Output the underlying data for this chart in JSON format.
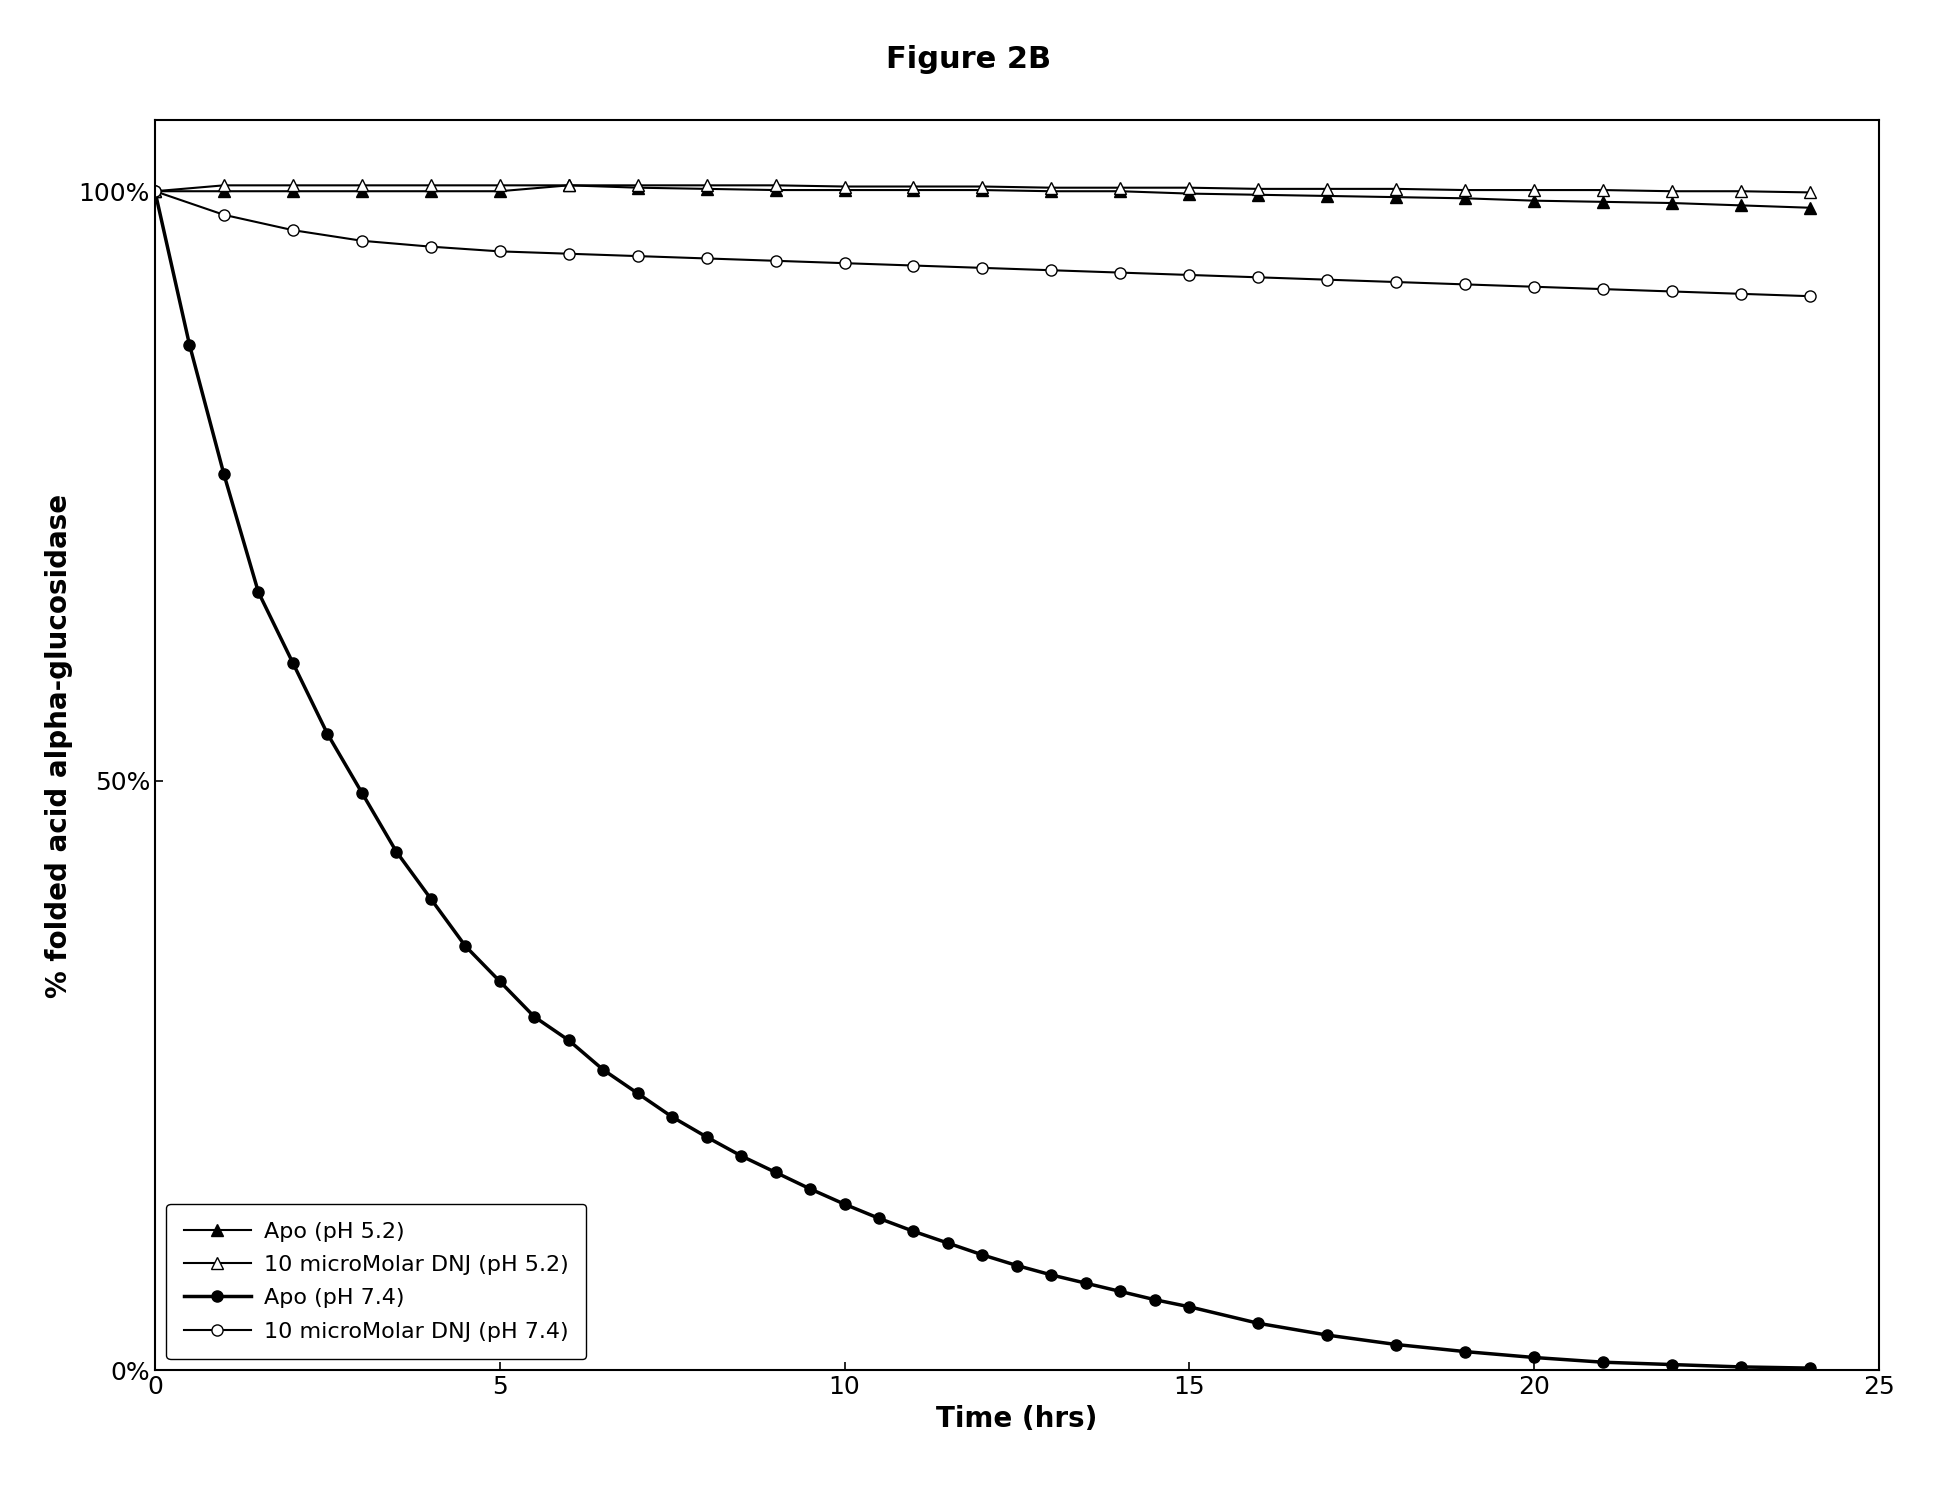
{
  "title": "Figure 2B",
  "xlabel": "Time (hrs)",
  "ylabel": "% folded acid alpha-glucosidase",
  "xlim": [
    0,
    25
  ],
  "ylim": [
    0,
    1.06
  ],
  "xticks": [
    0,
    5,
    10,
    15,
    20,
    25
  ],
  "yticks": [
    0.0,
    0.5,
    1.0
  ],
  "ytick_labels": [
    "0%",
    "50%",
    "100%"
  ],
  "apo_ph52_x": [
    0,
    1,
    2,
    3,
    4,
    5,
    6,
    7,
    8,
    9,
    10,
    11,
    12,
    13,
    14,
    15,
    16,
    17,
    18,
    19,
    20,
    21,
    22,
    23,
    24
  ],
  "apo_ph52_y": [
    1.0,
    1.0,
    1.0,
    1.0,
    1.0,
    1.0,
    1.005,
    1.003,
    1.002,
    1.001,
    1.001,
    1.001,
    1.001,
    1.0,
    1.0,
    0.998,
    0.997,
    0.996,
    0.995,
    0.994,
    0.992,
    0.991,
    0.99,
    0.988,
    0.986
  ],
  "dnj_ph52_x": [
    0,
    1,
    2,
    3,
    4,
    5,
    6,
    7,
    8,
    9,
    10,
    11,
    12,
    13,
    14,
    15,
    16,
    17,
    18,
    19,
    20,
    21,
    22,
    23,
    24
  ],
  "dnj_ph52_y": [
    1.0,
    1.005,
    1.005,
    1.005,
    1.005,
    1.005,
    1.005,
    1.005,
    1.005,
    1.005,
    1.004,
    1.004,
    1.004,
    1.003,
    1.003,
    1.003,
    1.002,
    1.002,
    1.002,
    1.001,
    1.001,
    1.001,
    1.0,
    1.0,
    0.999
  ],
  "apo_ph74_x": [
    0,
    0.5,
    1,
    1.5,
    2,
    2.5,
    3,
    3.5,
    4,
    4.5,
    5,
    5.5,
    6,
    6.5,
    7,
    7.5,
    8,
    8.5,
    9,
    9.5,
    10,
    10.5,
    11,
    11.5,
    12,
    12.5,
    13,
    13.5,
    14,
    14.5,
    15,
    16,
    17,
    18,
    19,
    20,
    21,
    22,
    23,
    24
  ],
  "apo_ph74_y": [
    1.0,
    0.87,
    0.76,
    0.66,
    0.6,
    0.54,
    0.49,
    0.44,
    0.4,
    0.36,
    0.33,
    0.3,
    0.28,
    0.255,
    0.235,
    0.215,
    0.198,
    0.182,
    0.168,
    0.154,
    0.141,
    0.129,
    0.118,
    0.108,
    0.098,
    0.089,
    0.081,
    0.074,
    0.067,
    0.06,
    0.054,
    0.04,
    0.03,
    0.022,
    0.016,
    0.011,
    0.007,
    0.005,
    0.003,
    0.002
  ],
  "dnj_ph74_x": [
    0,
    1,
    2,
    3,
    4,
    5,
    6,
    7,
    8,
    9,
    10,
    11,
    12,
    13,
    14,
    15,
    16,
    17,
    18,
    19,
    20,
    21,
    22,
    23,
    24
  ],
  "dnj_ph74_y": [
    1.0,
    0.98,
    0.967,
    0.958,
    0.953,
    0.949,
    0.947,
    0.945,
    0.943,
    0.941,
    0.939,
    0.937,
    0.935,
    0.933,
    0.931,
    0.929,
    0.927,
    0.925,
    0.923,
    0.921,
    0.919,
    0.917,
    0.915,
    0.913,
    0.911
  ],
  "legend_labels": [
    "Apo (pH 5.2)",
    "10 microMolar DNJ (pH 5.2)",
    "Apo (pH 7.4)",
    "10 microMolar DNJ (pH 7.4)"
  ],
  "color": "#000000",
  "background_color": "#ffffff",
  "title_fontsize": 22,
  "label_fontsize": 20,
  "tick_fontsize": 18,
  "legend_fontsize": 16
}
